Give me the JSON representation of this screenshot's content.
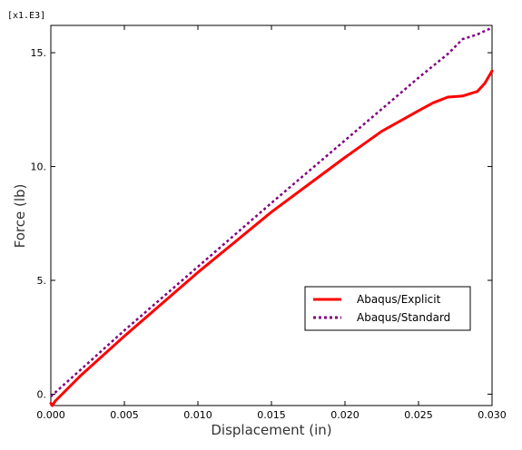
{
  "chart_data": {
    "type": "line",
    "xlabel": "Displacement (in)",
    "ylabel": "Force (lb)",
    "y_multiplier": "[x1.E3]",
    "xlim": [
      0.0,
      0.03
    ],
    "ylim": [
      -0.5,
      16.2
    ],
    "x_ticks": [
      0.0,
      0.005,
      0.01,
      0.015,
      0.02,
      0.025,
      0.03
    ],
    "x_tick_labels": [
      "0.000",
      "0.005",
      "0.010",
      "0.015",
      "0.020",
      "0.025",
      "0.030"
    ],
    "y_ticks": [
      0,
      5,
      10,
      15
    ],
    "y_tick_labels": [
      "0.",
      "5.",
      "10.",
      "15."
    ],
    "grid": false,
    "legend_position": "lower-right",
    "series": [
      {
        "name": "Abaqus/Explicit",
        "color": "#ff0000",
        "style": "solid",
        "x": [
          0.0,
          0.0001,
          0.0003,
          0.002,
          0.005,
          0.01,
          0.015,
          0.02,
          0.0225,
          0.025,
          0.026,
          0.027,
          0.028,
          0.029,
          0.0295,
          0.03
        ],
        "y": [
          -0.4,
          -0.5,
          -0.3,
          0.8,
          2.55,
          5.35,
          8.0,
          10.4,
          11.55,
          12.45,
          12.8,
          13.05,
          13.1,
          13.3,
          13.65,
          14.2
        ]
      },
      {
        "name": "Abaqus/Standard",
        "color": "#800080",
        "style": "dashed",
        "x": [
          0.0,
          0.005,
          0.01,
          0.015,
          0.02,
          0.025,
          0.027,
          0.028,
          0.029,
          0.03
        ],
        "y": [
          -0.1,
          2.8,
          5.6,
          8.4,
          11.15,
          13.9,
          14.95,
          15.6,
          15.8,
          16.1
        ]
      }
    ]
  }
}
